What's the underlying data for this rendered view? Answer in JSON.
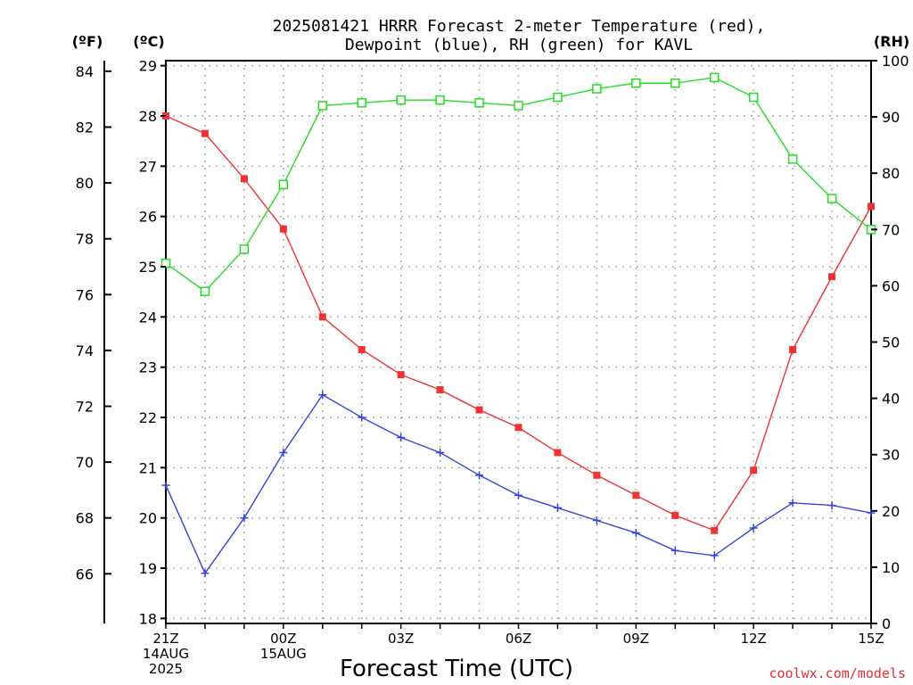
{
  "chart_data": {
    "type": "line",
    "title_line1": "2025081421 HRRR Forecast 2-meter Temperature (red),",
    "title_line2": "Dewpoint (blue), RH (green) for KAVL",
    "left_outer_unit": "(ºF)",
    "left_inner_unit": "(ºC)",
    "right_unit": "(RH)",
    "xlabel": "Forecast Time (UTC)",
    "credit": "coolwx.com/models",
    "x_hours": [
      0,
      1,
      2,
      3,
      4,
      5,
      6,
      7,
      8,
      9,
      10,
      11,
      12,
      13,
      14,
      15,
      16,
      17,
      18
    ],
    "x_tick_labels": [
      {
        "hour": 0,
        "lines": [
          "21Z",
          "14AUG",
          "2025"
        ]
      },
      {
        "hour": 3,
        "lines": [
          "00Z",
          "15AUG"
        ]
      },
      {
        "hour": 6,
        "lines": [
          "03Z"
        ]
      },
      {
        "hour": 9,
        "lines": [
          "06Z"
        ]
      },
      {
        "hour": 12,
        "lines": [
          "09Z"
        ]
      },
      {
        "hour": 15,
        "lines": [
          "12Z"
        ]
      },
      {
        "hour": 18,
        "lines": [
          "15Z"
        ]
      }
    ],
    "celsius_range": [
      17.9,
      29.1
    ],
    "celsius_ticks": [
      18,
      19,
      20,
      21,
      22,
      23,
      24,
      25,
      26,
      27,
      28,
      29
    ],
    "fahrenheit_ticks": [
      66,
      68,
      70,
      72,
      74,
      76,
      78,
      80,
      82,
      84
    ],
    "rh_range": [
      0,
      100
    ],
    "rh_ticks": [
      0,
      10,
      20,
      30,
      40,
      50,
      60,
      70,
      80,
      90,
      100
    ],
    "grid": true,
    "series": [
      {
        "name": "Temperature",
        "color": "#ee3333",
        "marker": "filled-square",
        "axis": "celsius",
        "values": [
          28.0,
          27.65,
          26.75,
          25.75,
          24.0,
          23.35,
          22.85,
          22.55,
          22.15,
          21.8,
          21.3,
          20.85,
          20.45,
          20.05,
          19.75,
          20.95,
          23.35,
          24.8,
          26.2
        ]
      },
      {
        "name": "Dewpoint",
        "color": "#3344dd",
        "marker": "plus",
        "axis": "celsius",
        "values": [
          20.65,
          18.9,
          20.0,
          21.3,
          22.45,
          22.0,
          21.6,
          21.3,
          20.85,
          20.45,
          20.2,
          19.95,
          19.7,
          19.35,
          19.25,
          19.8,
          20.3,
          20.25,
          20.1
        ]
      },
      {
        "name": "RH",
        "color": "#22dd22",
        "marker": "open-square",
        "axis": "rh",
        "values": [
          64,
          59,
          66.5,
          78,
          92,
          92.5,
          93,
          93,
          92.5,
          92,
          93.5,
          95,
          96,
          96,
          97,
          93.5,
          82.5,
          75.5,
          70
        ]
      }
    ]
  }
}
